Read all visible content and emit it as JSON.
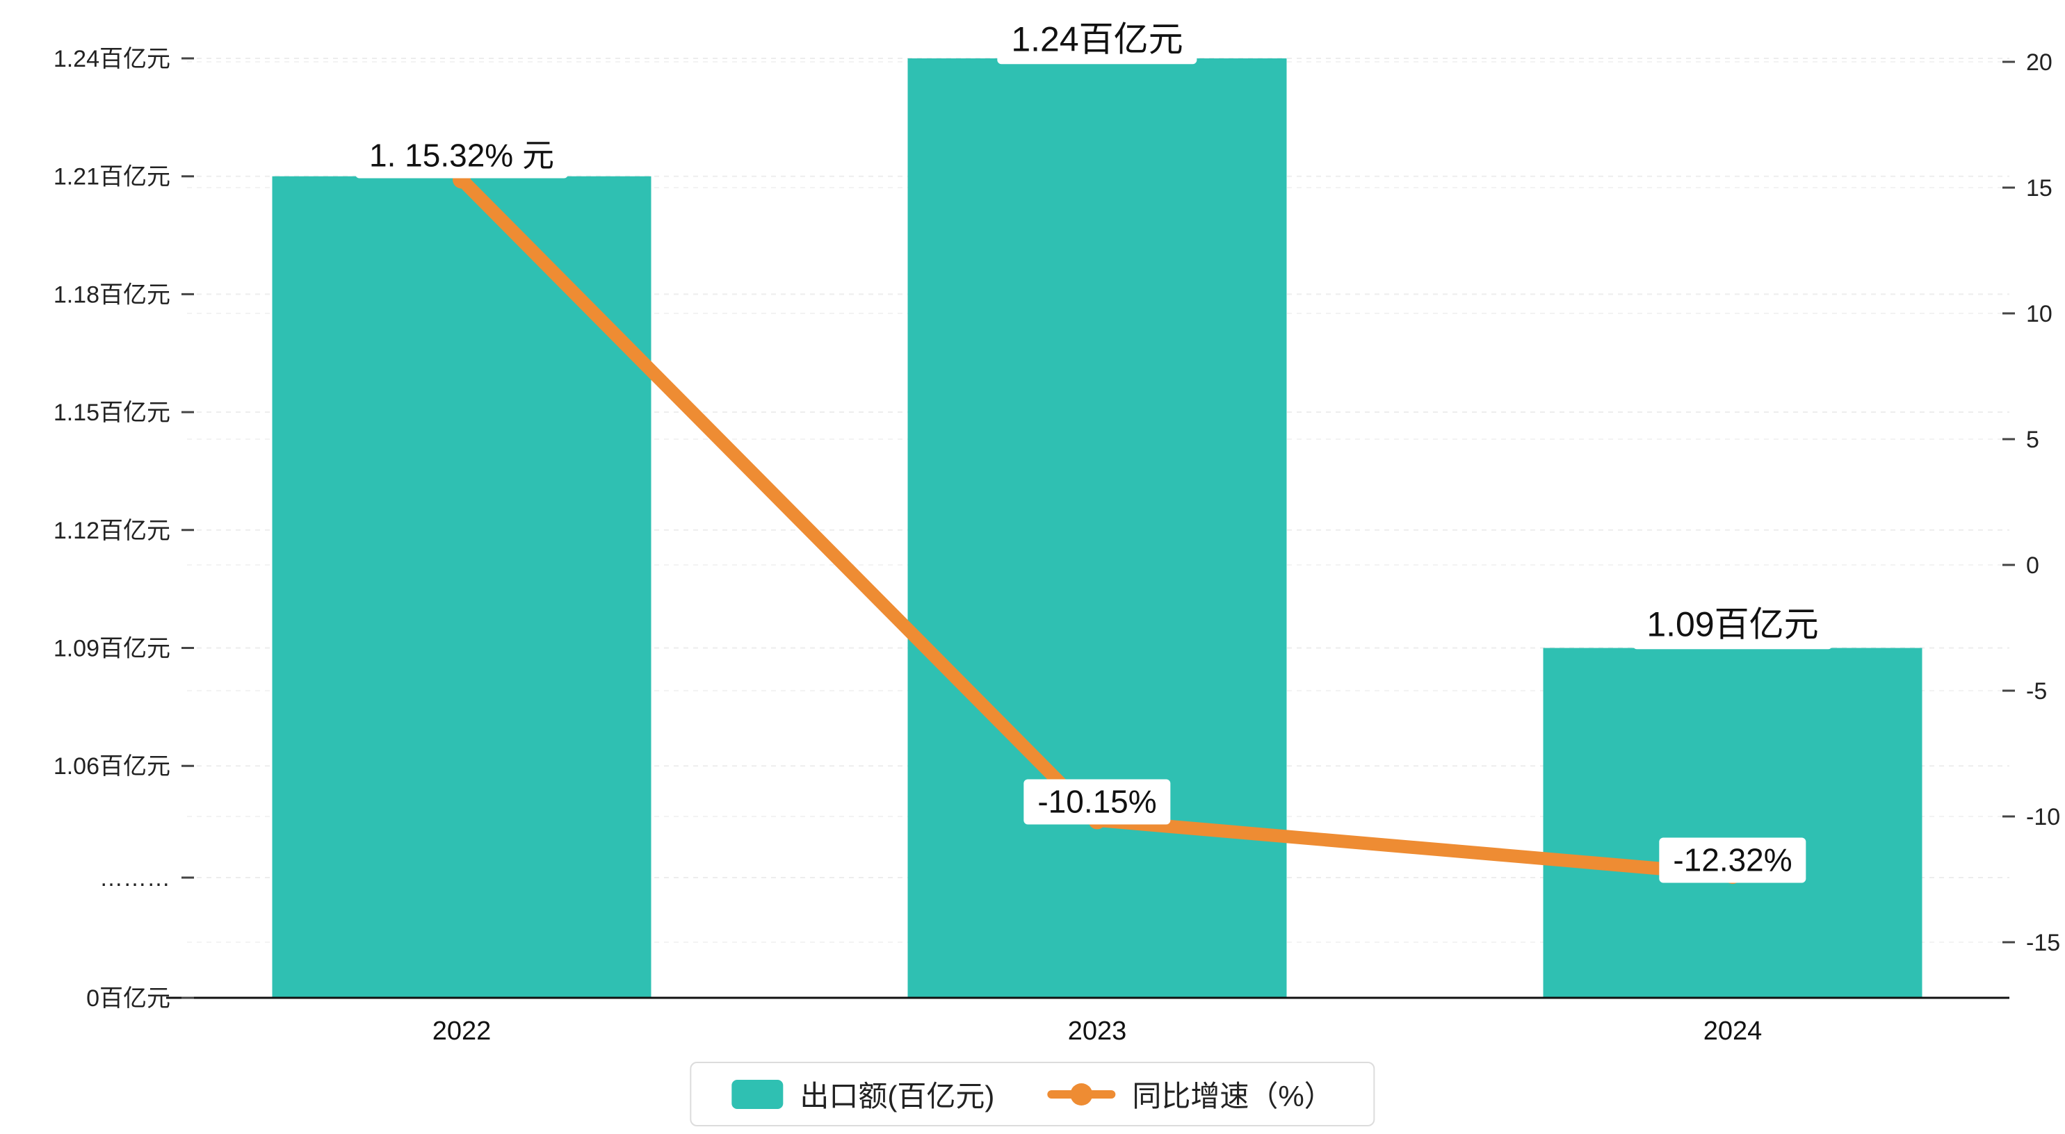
{
  "chart_data": {
    "type": "combo",
    "categories": [
      "2022",
      "2023",
      "2024"
    ],
    "series": [
      {
        "name": "出口额(百亿元)",
        "type": "bar",
        "color": "#2fc0b2",
        "values": [
          1.21,
          1.24,
          1.09
        ],
        "labels": [
          "1.21百亿元",
          "1.24百亿元",
          "1.09百亿元"
        ]
      },
      {
        "name": "同比增速（%）",
        "type": "line",
        "color": "#ee8c33",
        "values": [
          15.32,
          -10.15,
          -12.32
        ],
        "labels": [
          "15.32%",
          "-10.15%",
          "-12.32%"
        ]
      }
    ],
    "left_axis": {
      "ticks": [
        "1.24百亿元",
        "1.21百亿元",
        "1.18百亿元",
        "1.15百亿元",
        "1.12百亿元",
        "1.09百亿元",
        "1.06百亿元",
        "………",
        "0百亿元"
      ],
      "tick_values": [
        1.24,
        1.21,
        1.18,
        1.15,
        1.12,
        1.09,
        1.06,
        null,
        0
      ],
      "axis_break": true
    },
    "right_axis": {
      "ticks": [
        20,
        15,
        10,
        5,
        0,
        -5,
        -10,
        -15
      ]
    },
    "visible_labels": {
      "bar_2022_overlapped": "1. 15.32% 元",
      "bar_2023": "1.24百亿元",
      "bar_2024": "1.09百亿元",
      "line_2023": "-10.15%",
      "line_2024": "-12.32%"
    },
    "grid": "dashed-horizontal",
    "legend_position": "bottom"
  },
  "legend": {
    "items": [
      {
        "label": "出口额(百亿元)",
        "color": "#2fc0b2",
        "marker": "square"
      },
      {
        "label": "同比增速（%）",
        "color": "#ee8c33",
        "marker": "line-dot"
      }
    ]
  }
}
